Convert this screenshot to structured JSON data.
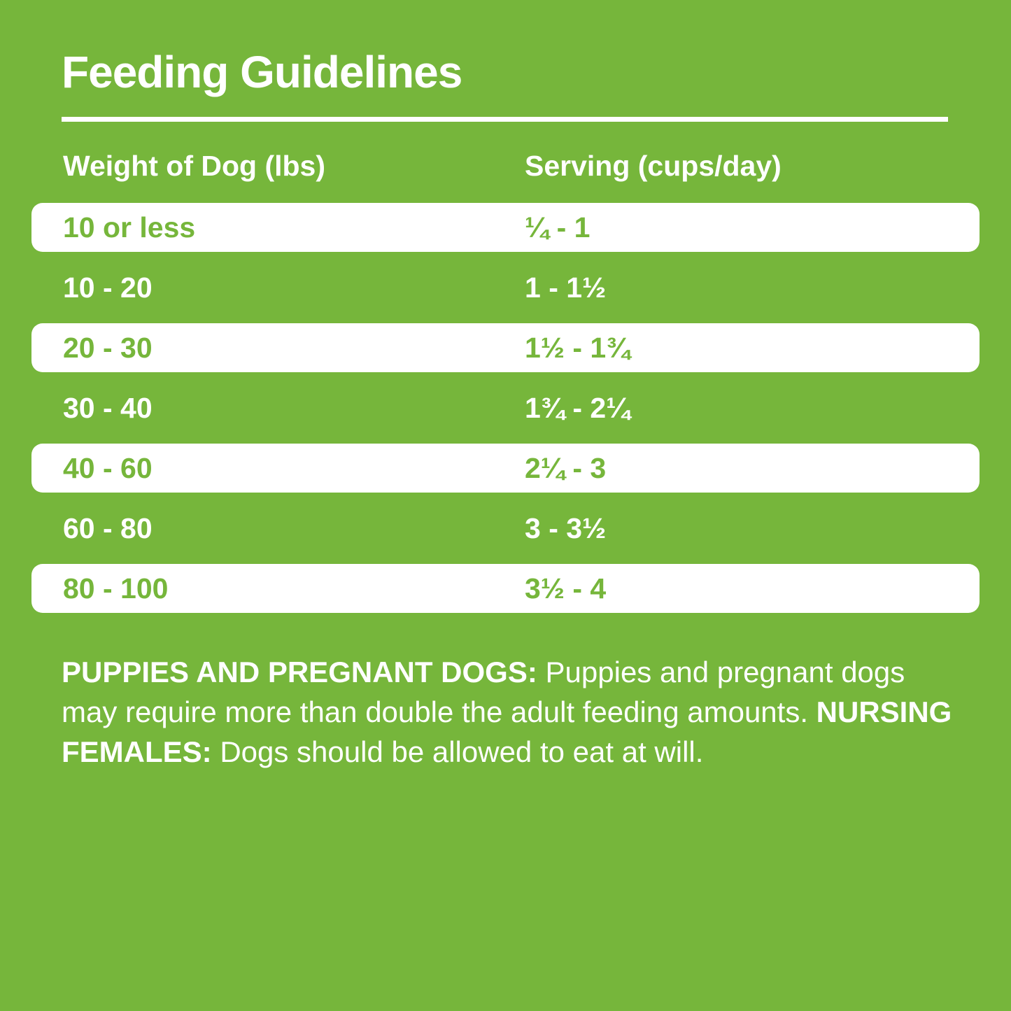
{
  "page": {
    "title": "Feeding Guidelines"
  },
  "colors": {
    "background": "#76B63B",
    "row_highlight": "#FFFFFF",
    "text_on_green": "#FFFFFF",
    "text_on_white": "#76B63B"
  },
  "table": {
    "headers": {
      "weight": "Weight of Dog (lbs)",
      "serving": "Serving (cups/day)"
    },
    "rows": [
      {
        "weight": "10 or less",
        "serving": "¼ - 1"
      },
      {
        "weight": "10 - 20",
        "serving": "1 - 1½"
      },
      {
        "weight": "20 - 30",
        "serving": "1½ - 1¾"
      },
      {
        "weight": "30 - 40",
        "serving": "1¾ - 2¼"
      },
      {
        "weight": "40 - 60",
        "serving": "2¼ - 3"
      },
      {
        "weight": "60 - 80",
        "serving": "3 - 3½"
      },
      {
        "weight": "80 - 100",
        "serving": "3½ - 4"
      }
    ]
  },
  "note": {
    "segments": [
      {
        "text": "PUPPIES AND PREGNANT DOGS: "
      },
      {
        "text": "Puppies and pregnant dogs may require more than double the adult feeding amounts. "
      },
      {
        "text": "NURSING FEMALES: "
      },
      {
        "text": "Dogs should be allowed to eat at will."
      }
    ]
  }
}
